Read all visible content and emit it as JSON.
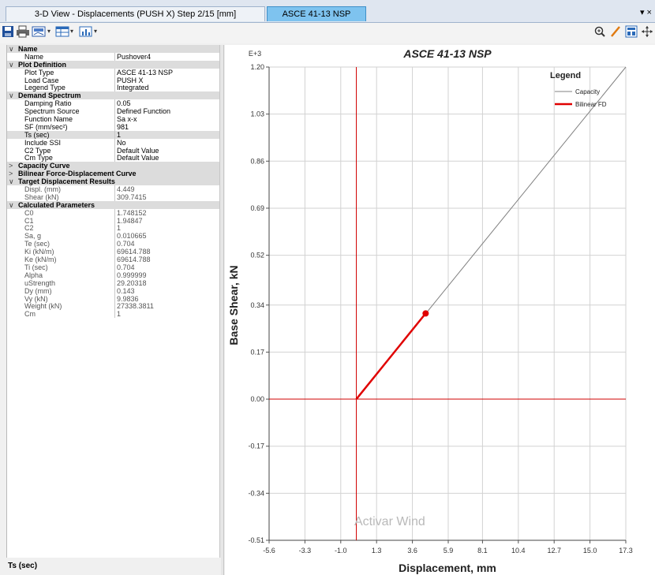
{
  "tabs": [
    {
      "label": "3-D View  - Displacements (PUSH X)  Step 2/15  [mm]",
      "active": false
    },
    {
      "label": "ASCE 41-13 NSP",
      "active": true
    }
  ],
  "tab_menu": "▾ ×",
  "toolbar": {
    "left_icons": [
      "save-icon",
      "print-icon",
      "display-icon",
      "table-icon",
      "chart-icon"
    ],
    "right_icons": [
      "zoom-icon",
      "pencil-icon",
      "tile-icon",
      "pan-icon"
    ]
  },
  "properties": [
    {
      "kind": "cat",
      "label": "Name",
      "toggle": "∨"
    },
    {
      "kind": "prop",
      "label": "Name",
      "value": "Pushover4"
    },
    {
      "kind": "cat",
      "label": "Plot Definition",
      "toggle": "∨"
    },
    {
      "kind": "prop",
      "label": "Plot Type",
      "value": "ASCE 41-13 NSP"
    },
    {
      "kind": "prop",
      "label": "Load Case",
      "value": "PUSH X"
    },
    {
      "kind": "prop",
      "label": "Legend Type",
      "value": "Integrated"
    },
    {
      "kind": "cat",
      "label": "Demand Spectrum",
      "toggle": "∨"
    },
    {
      "kind": "prop",
      "label": "Damping Ratio",
      "value": "0.05"
    },
    {
      "kind": "prop",
      "label": "Spectrum Source",
      "value": "Defined Function"
    },
    {
      "kind": "prop",
      "label": "Function Name",
      "value": "Sa x-x"
    },
    {
      "kind": "prop",
      "label": "SF (mm/sec²)",
      "value": "981"
    },
    {
      "kind": "prop",
      "label": "Ts (sec)",
      "value": "1",
      "highlight": true
    },
    {
      "kind": "prop",
      "label": "Include SSI",
      "value": "No"
    },
    {
      "kind": "prop",
      "label": "C2 Type",
      "value": "Default Value"
    },
    {
      "kind": "prop",
      "label": "Cm Type",
      "value": "Default Value"
    },
    {
      "kind": "cat",
      "label": "Capacity Curve",
      "toggle": ">"
    },
    {
      "kind": "cat",
      "label": "Bilinear Force-Displacement Curve",
      "toggle": ">"
    },
    {
      "kind": "cat",
      "label": "Target Displacement Results",
      "toggle": "∨"
    },
    {
      "kind": "prop",
      "label": "Displ. (mm)",
      "value": "4.449",
      "dim": true
    },
    {
      "kind": "prop",
      "label": "Shear (kN)",
      "value": "309.7415",
      "dim": true
    },
    {
      "kind": "cat",
      "label": "Calculated Parameters",
      "toggle": "∨"
    },
    {
      "kind": "prop",
      "label": "C0",
      "value": "1.748152",
      "dim": true
    },
    {
      "kind": "prop",
      "label": "C1",
      "value": "1.94847",
      "dim": true
    },
    {
      "kind": "prop",
      "label": "C2",
      "value": "1",
      "dim": true
    },
    {
      "kind": "prop",
      "label": "Sa, g",
      "value": "0.010665",
      "dim": true
    },
    {
      "kind": "prop",
      "label": "Te (sec)",
      "value": "0.704",
      "dim": true
    },
    {
      "kind": "prop",
      "label": "Ki (kN/m)",
      "value": "69614.788",
      "dim": true
    },
    {
      "kind": "prop",
      "label": "Ke (kN/m)",
      "value": "69614.788",
      "dim": true
    },
    {
      "kind": "prop",
      "label": "Ti (sec)",
      "value": "0.704",
      "dim": true
    },
    {
      "kind": "prop",
      "label": "Alpha",
      "value": "0.999999",
      "dim": true
    },
    {
      "kind": "prop",
      "label": "uStrength",
      "value": "29.20318",
      "dim": true
    },
    {
      "kind": "prop",
      "label": "Dy (mm)",
      "value": "0.143",
      "dim": true
    },
    {
      "kind": "prop",
      "label": "Vy (kN)",
      "value": "9.9836",
      "dim": true
    },
    {
      "kind": "prop",
      "label": "Weight (kN)",
      "value": "27338.3811",
      "dim": true
    },
    {
      "kind": "prop",
      "label": "Cm",
      "value": "1",
      "dim": true
    }
  ],
  "status_text": "Ts (sec)",
  "watermark": "Activar Wind",
  "colors": {
    "capacity": "#808080",
    "bilinear": "#e00000",
    "axis_red": "#d00000",
    "grid": "#d2d2d2",
    "active_tab": "#7ec3ef"
  },
  "chart_data": {
    "type": "line",
    "title": "ASCE 41-13 NSP",
    "xlabel": "Displacement, mm",
    "ylabel": "Base Shear, kN",
    "y_multiplier_label": "E+3",
    "xlim": [
      -5.6,
      17.3
    ],
    "ylim": [
      -0.51,
      1.2
    ],
    "x_ticks": [
      -5.6,
      -3.3,
      -1.0,
      1.3,
      3.6,
      5.9,
      8.1,
      10.4,
      12.7,
      15.0,
      17.3
    ],
    "x_tick_labels": [
      "-5.6",
      "-3.3",
      "-1.0",
      "1.3",
      "3.6",
      "5.9",
      "8.1",
      "10.4",
      "12.7",
      "15.0",
      "17.3"
    ],
    "y_ticks": [
      1.2,
      1.03,
      0.86,
      0.69,
      0.52,
      0.34,
      0.17,
      0.0,
      -0.17,
      -0.34,
      -0.51
    ],
    "y_tick_labels": [
      "1.20",
      "1.03",
      "0.86",
      "0.69",
      "0.52",
      "0.34",
      "0.17",
      "0.00",
      "-0.17",
      "-0.34",
      "-0.51"
    ],
    "grid": true,
    "legend": {
      "title": "Legend",
      "position": "top-right"
    },
    "series": [
      {
        "name": "Capacity",
        "color": "#808080",
        "width": 1,
        "x": [
          0,
          17.3
        ],
        "y": [
          0,
          1.2
        ]
      },
      {
        "name": "Bilinear FD",
        "color": "#e00000",
        "width": 2.5,
        "x": [
          0,
          4.449
        ],
        "y": [
          0,
          0.3097415
        ]
      }
    ],
    "target_point": {
      "x": 4.449,
      "y": 0.3097415
    },
    "reference_lines": {
      "x": 0,
      "y": 0
    }
  }
}
